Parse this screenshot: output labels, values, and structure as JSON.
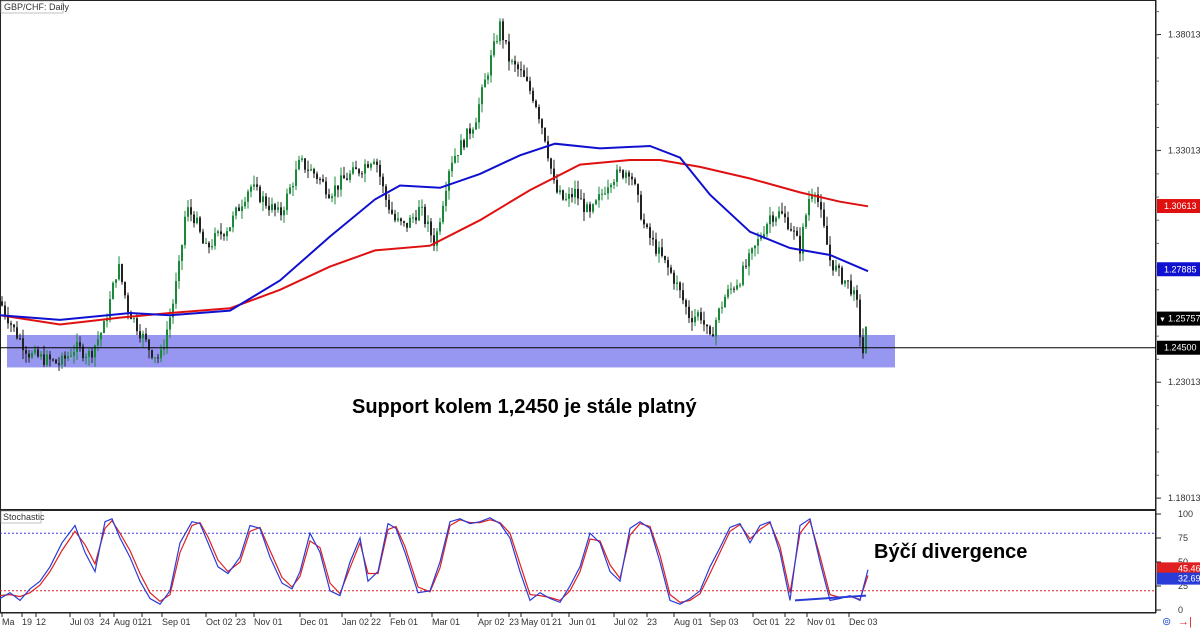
{
  "header": {
    "symbol_label": "GBP/CHF: Daily"
  },
  "indicator": {
    "label": "Stochastic"
  },
  "annotations": {
    "support": "Support kolem 1,2450 je stále platný",
    "divergence": "Býčí divergence"
  },
  "colors": {
    "up_candle": "#1a8a3a",
    "down_candle": "#222222",
    "ma_fast": "#1010d0",
    "ma_slow": "#e01010",
    "support_zone": "#8c8cf0",
    "stoch_k": "#2a3cd8",
    "stoch_d": "#e02020",
    "level_line": "#000000"
  },
  "chart_data": [
    {
      "type": "line",
      "title": "GBP/CHF: Daily",
      "y_axis": {
        "ticks": [
          "1.38013",
          "1.33013",
          "1.23013",
          "1.18013"
        ],
        "ylim": [
          1.175,
          1.395
        ]
      },
      "x_axis": {
        "ticks": [
          "Ma",
          "19",
          "12",
          "Jul 03",
          "24",
          "Aug 01",
          "21",
          "Sep 01",
          "Oct 02",
          "23",
          "Nov 01",
          "Dec 01",
          "Jan 02",
          "22",
          "Feb 01",
          "Mar 01",
          "Apr 02",
          "23",
          "May 01",
          "21",
          "Jun 01",
          "Jul 02",
          "23",
          "Aug 01",
          "Sep 03",
          "Oct 01",
          "22",
          "Nov 01",
          "Dec 03"
        ]
      },
      "price_labels": [
        {
          "value": "1.30613",
          "color": "#e01010"
        },
        {
          "value": "1.27885",
          "color": "#1010d0"
        },
        {
          "value": "1.25757",
          "color": "#000000",
          "marker": "▼"
        },
        {
          "value": "1.24500",
          "color": "#000000"
        }
      ],
      "support_zone": [
        1.2365,
        1.2505
      ],
      "horizontal_level": 1.245,
      "series": [
        {
          "name": "",
          "kind": "close",
          "x": [
            0,
            15,
            30,
            45,
            60,
            75,
            90,
            105,
            118,
            128,
            140,
            150,
            160,
            172,
            180,
            186,
            195,
            205,
            215,
            230,
            250,
            265,
            280,
            300,
            315,
            330,
            345,
            360,
            375,
            385,
            395,
            405,
            420,
            435,
            450,
            465,
            475,
            490,
            500,
            510,
            520,
            535,
            545,
            555,
            565,
            575,
            590,
            610,
            630,
            645,
            660,
            675,
            690,
            700,
            710,
            715,
            725,
            740,
            755,
            770,
            780,
            790,
            800,
            810,
            815,
            822,
            830,
            840,
            850,
            858,
            862,
            868
          ],
          "y": [
            1.265,
            1.252,
            1.242,
            1.24,
            1.238,
            1.245,
            1.242,
            1.255,
            1.281,
            1.262,
            1.252,
            1.244,
            1.24,
            1.262,
            1.282,
            1.305,
            1.301,
            1.287,
            1.292,
            1.298,
            1.315,
            1.308,
            1.302,
            1.325,
            1.32,
            1.312,
            1.318,
            1.322,
            1.328,
            1.31,
            1.3,
            1.297,
            1.305,
            1.29,
            1.325,
            1.335,
            1.343,
            1.368,
            1.384,
            1.368,
            1.364,
            1.352,
            1.336,
            1.313,
            1.308,
            1.312,
            1.302,
            1.318,
            1.322,
            1.296,
            1.285,
            1.274,
            1.258,
            1.26,
            1.248,
            1.256,
            1.267,
            1.275,
            1.288,
            1.302,
            1.303,
            1.298,
            1.288,
            1.312,
            1.314,
            1.3,
            1.283,
            1.276,
            1.272,
            1.262,
            1.24,
            1.258
          ]
        },
        {
          "name": "",
          "kind": "ma",
          "color": "#1010d0",
          "x": [
            0,
            60,
            130,
            170,
            230,
            280,
            330,
            375,
            400,
            440,
            480,
            520,
            555,
            600,
            650,
            680,
            710,
            750,
            790,
            830,
            868
          ],
          "y": [
            1.259,
            1.257,
            1.26,
            1.259,
            1.261,
            1.274,
            1.293,
            1.309,
            1.315,
            1.314,
            1.32,
            1.328,
            1.333,
            1.331,
            1.332,
            1.327,
            1.311,
            1.295,
            1.288,
            1.285,
            1.278
          ]
        },
        {
          "name": "",
          "kind": "ma",
          "color": "#e01010",
          "x": [
            0,
            60,
            120,
            170,
            230,
            280,
            330,
            375,
            430,
            480,
            530,
            580,
            630,
            660,
            700,
            750,
            800,
            840,
            868
          ],
          "y": [
            1.259,
            1.255,
            1.258,
            1.26,
            1.262,
            1.27,
            1.28,
            1.287,
            1.289,
            1.3,
            1.313,
            1.324,
            1.326,
            1.326,
            1.323,
            1.318,
            1.312,
            1.308,
            1.306
          ]
        }
      ]
    },
    {
      "type": "line",
      "title": "Stochastic",
      "y_axis": {
        "ticks": [
          "100",
          "75",
          "50",
          "25",
          "0"
        ],
        "ylim": [
          0,
          100
        ]
      },
      "levels": [
        80,
        20
      ],
      "value_labels": [
        {
          "value": "45.46",
          "color": "#e02020"
        },
        {
          "value": "32.69",
          "color": "#2a3cd8"
        }
      ],
      "series": [
        {
          "name": "",
          "kind": "%K",
          "x": [
            0,
            10,
            20,
            30,
            40,
            50,
            62,
            75,
            85,
            95,
            105,
            112,
            120,
            130,
            140,
            150,
            160,
            170,
            180,
            192,
            200,
            208,
            218,
            228,
            240,
            250,
            260,
            270,
            282,
            292,
            300,
            310,
            320,
            330,
            340,
            350,
            360,
            368,
            378,
            388,
            396,
            405,
            418,
            430,
            440,
            450,
            460,
            470,
            480,
            490,
            500,
            510,
            520,
            530,
            540,
            550,
            560,
            570,
            580,
            590,
            600,
            610,
            620,
            630,
            640,
            650,
            660,
            670,
            680,
            690,
            700,
            710,
            720,
            730,
            740,
            750,
            760,
            770,
            780,
            790,
            800,
            810,
            820,
            830,
            840,
            850,
            860,
            868
          ],
          "y": [
            12,
            18,
            10,
            22,
            30,
            45,
            70,
            88,
            60,
            40,
            92,
            95,
            75,
            55,
            30,
            12,
            6,
            20,
            70,
            92,
            90,
            70,
            45,
            38,
            55,
            88,
            85,
            55,
            28,
            22,
            40,
            80,
            60,
            20,
            15,
            50,
            75,
            30,
            40,
            90,
            85,
            60,
            18,
            20,
            50,
            92,
            95,
            90,
            92,
            96,
            90,
            75,
            40,
            10,
            18,
            12,
            8,
            25,
            45,
            80,
            70,
            40,
            30,
            85,
            92,
            85,
            50,
            10,
            6,
            12,
            20,
            45,
            65,
            86,
            90,
            70,
            88,
            92,
            60,
            10,
            88,
            95,
            50,
            10,
            12,
            15,
            10,
            42
          ]
        },
        {
          "name": "",
          "kind": "%D",
          "x": [
            0,
            10,
            20,
            30,
            40,
            50,
            62,
            75,
            85,
            95,
            105,
            112,
            120,
            130,
            140,
            150,
            160,
            170,
            180,
            192,
            200,
            208,
            218,
            228,
            240,
            250,
            260,
            270,
            282,
            292,
            300,
            310,
            320,
            330,
            340,
            350,
            360,
            368,
            378,
            388,
            396,
            405,
            418,
            430,
            440,
            450,
            460,
            470,
            480,
            490,
            500,
            510,
            520,
            530,
            540,
            550,
            560,
            570,
            580,
            590,
            600,
            610,
            620,
            630,
            640,
            650,
            660,
            670,
            680,
            690,
            700,
            710,
            720,
            730,
            740,
            750,
            760,
            770,
            780,
            790,
            800,
            810,
            820,
            830,
            840,
            850,
            860,
            868
          ],
          "y": [
            15,
            16,
            14,
            18,
            26,
            40,
            62,
            82,
            68,
            48,
            85,
            93,
            80,
            62,
            38,
            18,
            9,
            16,
            60,
            88,
            91,
            76,
            52,
            40,
            50,
            82,
            86,
            62,
            34,
            24,
            35,
            72,
            65,
            28,
            17,
            44,
            70,
            38,
            38,
            84,
            87,
            66,
            24,
            19,
            44,
            88,
            94,
            91,
            91,
            94,
            91,
            80,
            48,
            16,
            15,
            13,
            10,
            20,
            40,
            74,
            72,
            47,
            33,
            78,
            90,
            87,
            57,
            16,
            8,
            10,
            17,
            38,
            60,
            82,
            89,
            74,
            84,
            91,
            66,
            18,
            80,
            93,
            56,
            16,
            13,
            14,
            11,
            36
          ]
        }
      ],
      "divergence_line": {
        "from": [
          795,
          10
        ],
        "to": [
          866,
          15
        ]
      }
    }
  ]
}
